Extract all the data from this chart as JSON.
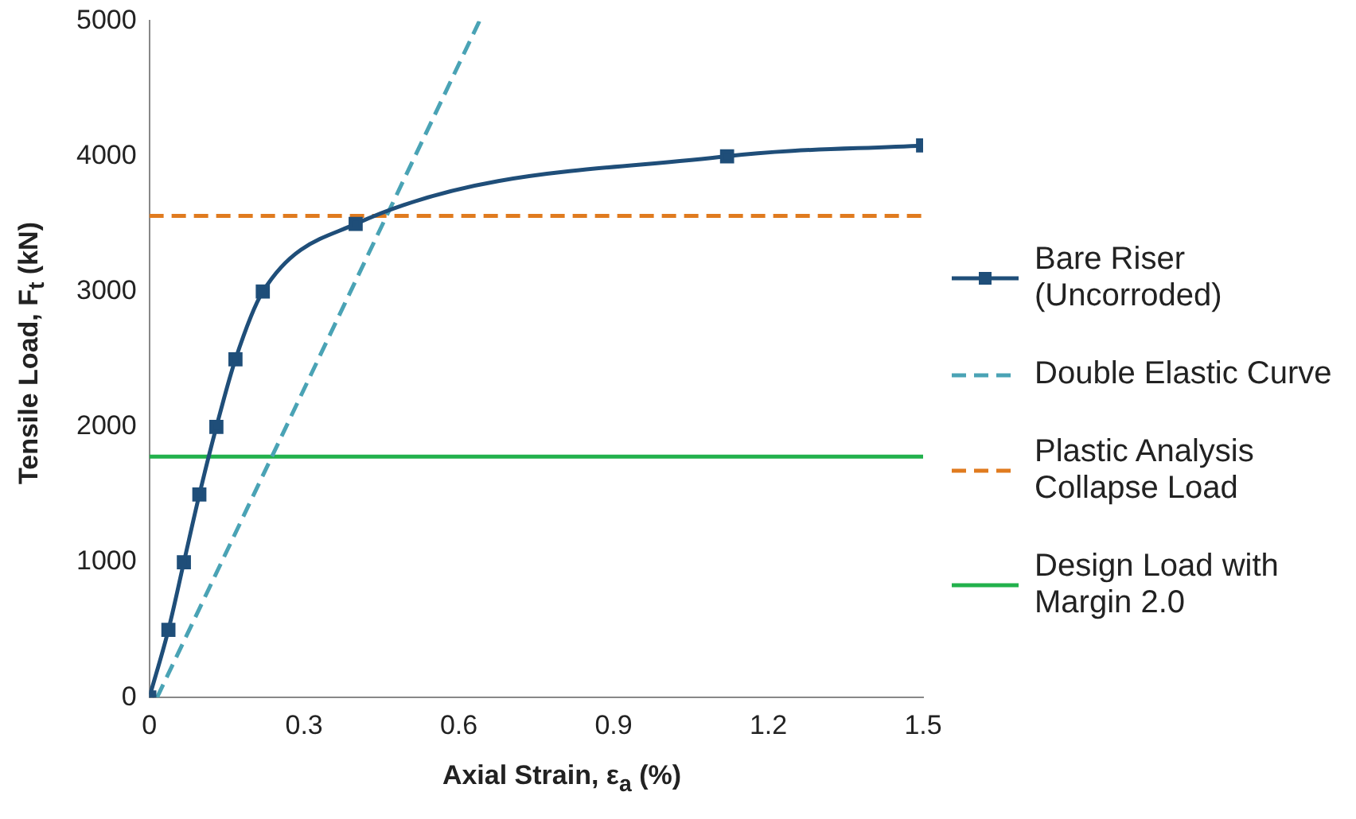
{
  "chart_data": {
    "type": "line",
    "xlabel": "Axial Strain, ε$_{a}$ (%)",
    "ylabel": "Tensile Load, F$_{t}$ (kN)",
    "xlim": [
      0,
      1.5
    ],
    "xticks": [
      0,
      0.3,
      0.6,
      0.9,
      1.2,
      1.5
    ],
    "ylim": [
      0,
      5000
    ],
    "yticks": [
      0,
      1000,
      2000,
      3000,
      4000,
      5000
    ],
    "grid": false,
    "legend": "right",
    "series": [
      {
        "name": "Bare Riser (Uncorroded)",
        "color": "#1f4e79",
        "marker": "square",
        "line_style": "solid",
        "x": [
          0,
          0.037,
          0.067,
          0.097,
          0.13,
          0.167,
          0.22,
          0.4,
          1.12,
          1.5
        ],
        "values": [
          0,
          500,
          1000,
          1500,
          2000,
          2500,
          3000,
          3500,
          4000,
          4080
        ]
      },
      {
        "name": "Double Elastic Curve",
        "color": "#4aa3b5",
        "marker": "none",
        "line_style": "dashed",
        "x": [
          0.015,
          0.64
        ],
        "values": [
          0,
          5000
        ]
      },
      {
        "name": "Plastic Analysis Collapse Load",
        "color": "#e07b1f",
        "marker": "none",
        "line_style": "dashed",
        "x": [
          0,
          1.5
        ],
        "values": [
          3560,
          3560
        ]
      },
      {
        "name": "Design Load with Margin 2.0",
        "color": "#22b14c",
        "marker": "none",
        "line_style": "solid",
        "x": [
          0,
          1.5
        ],
        "values": [
          1780,
          1780
        ]
      }
    ]
  }
}
